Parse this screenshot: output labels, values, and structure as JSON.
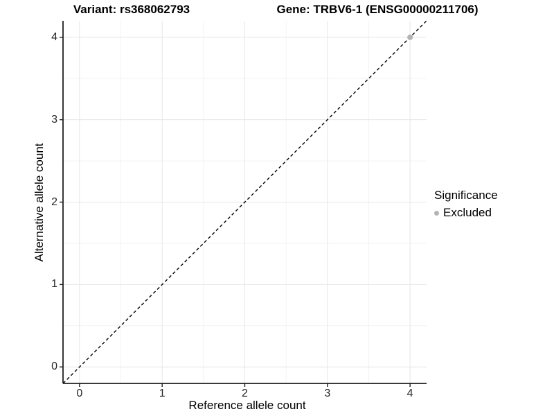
{
  "titles": {
    "variant": "Variant: rs368062793",
    "gene": "Gene: TRBV6-1 (ENSG00000211706)"
  },
  "axes": {
    "x_label": "Reference allele count",
    "y_label": "Alternative allele count"
  },
  "legend": {
    "title": "Significance",
    "items": [
      {
        "label": "Excluded",
        "color": "#b3b3b3"
      }
    ]
  },
  "chart_data": {
    "type": "scatter",
    "title": "Variant: rs368062793   Gene: TRBV6-1 (ENSG00000211706)",
    "xlabel": "Reference allele count",
    "ylabel": "Alternative allele count",
    "xlim": [
      -0.2,
      4.2
    ],
    "ylim": [
      -0.2,
      4.2
    ],
    "x_ticks": [
      "0",
      "1",
      "2",
      "3",
      "4"
    ],
    "y_ticks": [
      "0",
      "1",
      "2",
      "3",
      "4"
    ],
    "x_tick_values": [
      0,
      1,
      2,
      3,
      4
    ],
    "y_tick_values": [
      0,
      1,
      2,
      3,
      4
    ],
    "minor_tick_values": [
      0.5,
      1.5,
      2.5,
      3.5
    ],
    "series": [
      {
        "name": "Excluded",
        "color": "#b3b3b3",
        "points": [
          {
            "x": 4,
            "y": 4
          }
        ]
      }
    ],
    "reference_line": {
      "slope": 1,
      "intercept": 0,
      "style": "dashed",
      "color": "#000000"
    },
    "grid": {
      "on": true,
      "major_color": "#e6e6e6",
      "minor_color": "#f3f3f3"
    },
    "axis_line_color": "#1f1f1f",
    "legend_position": "right"
  }
}
